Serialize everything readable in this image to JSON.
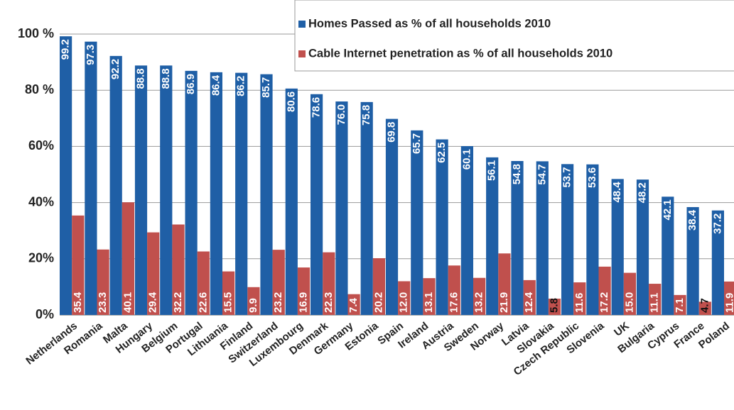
{
  "chart_data": {
    "type": "bar",
    "categories": [
      "Netherlands",
      "Romania",
      "Malta",
      "Hungary",
      "Belgium",
      "Portugal",
      "Lithuania",
      "Finland",
      "Switzerland",
      "Luxembourg",
      "Denmark",
      "Germany",
      "Estonia",
      "Spain",
      "Ireland",
      "Austria",
      "Sweden",
      "Norway",
      "Latvia",
      "Slovakia",
      "Czech Republic",
      "Slovenia",
      "UK",
      "Bulgaria",
      "Cyprus",
      "France",
      "Poland"
    ],
    "series": [
      {
        "name": "Homes Passed as % of all households 2010",
        "color": "#1f5fa6",
        "values": [
          99.2,
          97.3,
          92.2,
          88.8,
          88.8,
          86.9,
          86.4,
          86.2,
          85.7,
          80.6,
          78.6,
          76.0,
          75.8,
          69.8,
          65.7,
          62.5,
          60.1,
          56.1,
          54.8,
          54.7,
          53.7,
          53.6,
          48.4,
          48.2,
          42.1,
          38.4,
          37.2
        ],
        "value_labels": [
          "99.2",
          "97.3",
          "92.2",
          "88.8",
          "88.8",
          "86.9",
          "86.4",
          "86.2",
          "85.7",
          "80.6",
          "78.6",
          "76.0",
          "75.8",
          "69.8",
          "65.7",
          "62.5",
          "60.1",
          "56.1",
          "54.8",
          "54.7",
          "53.7",
          "53.6",
          "48.4",
          "48.2",
          "42.1",
          "38.4",
          "37.2"
        ]
      },
      {
        "name": "Cable Internet penetration as % of all households 2010",
        "color": "#c0504d",
        "values": [
          35.4,
          23.3,
          40.1,
          29.4,
          32.2,
          22.6,
          15.5,
          9.9,
          23.2,
          16.9,
          22.3,
          7.4,
          20.2,
          12.0,
          13.1,
          17.6,
          13.2,
          21.9,
          12.4,
          5.8,
          11.6,
          17.2,
          15.0,
          11.1,
          7.1,
          4.7,
          11.9
        ],
        "value_labels": [
          "35.4",
          "23.3",
          "40.1",
          "29.4",
          "32.2",
          "22.6",
          "15.5",
          "9.9",
          "23.2",
          "16.9",
          "22.3",
          "7.4",
          "20.2",
          "12.0",
          "13.1",
          "17.6",
          "13.2",
          "21.9",
          "12.4",
          "5.8",
          "11.6",
          "17.2",
          "15.0",
          "11.1",
          "7.1",
          "4.7",
          "11.9"
        ]
      }
    ],
    "ylim": [
      0,
      100
    ],
    "yticks": [
      {
        "value": 0,
        "label": "0%"
      },
      {
        "value": 20,
        "label": "20%"
      },
      {
        "value": 40,
        "label": "40%"
      },
      {
        "value": 60,
        "label": "60%"
      },
      {
        "value": 80,
        "label": "80 %"
      },
      {
        "value": 100,
        "label": "100 %"
      }
    ],
    "grid": true,
    "legend": "top-right"
  }
}
